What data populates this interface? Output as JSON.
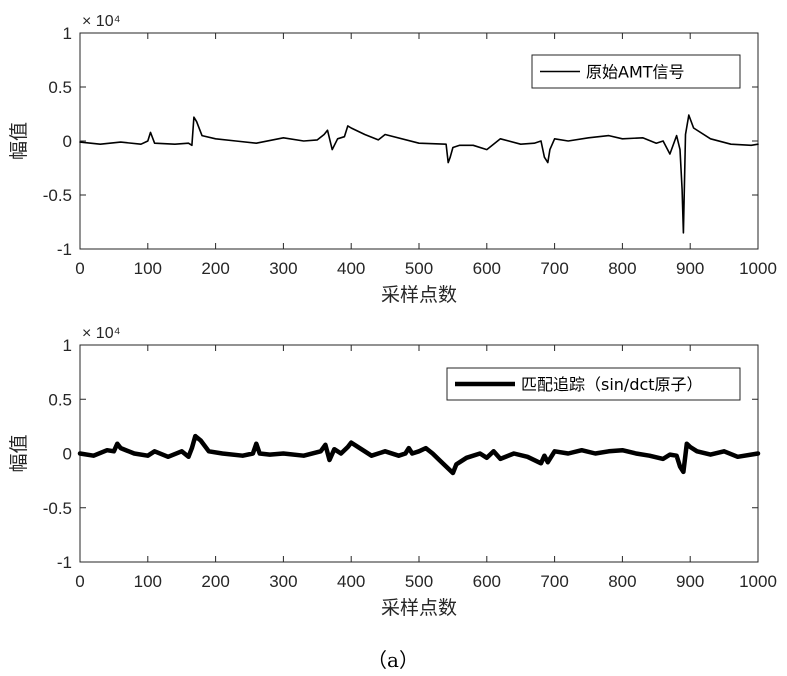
{
  "chart_data": [
    {
      "type": "line",
      "xlabel": "采样点数",
      "ylabel": "幅值",
      "xlim": [
        0,
        1000
      ],
      "ylim": [
        -10000,
        10000
      ],
      "xticks": [
        "0",
        "100",
        "200",
        "300",
        "400",
        "500",
        "600",
        "700",
        "800",
        "900",
        "1000"
      ],
      "yticks": [
        "1",
        "0.5",
        "0",
        "-0.5",
        "-1"
      ],
      "exponent": "× 10⁴",
      "legend_position": "top-right",
      "grid": false,
      "series": [
        {
          "name": "原始AMT信号",
          "color": "#000000",
          "x": [
            0,
            30,
            60,
            90,
            100,
            104,
            110,
            140,
            160,
            165,
            168,
            172,
            180,
            200,
            230,
            260,
            300,
            330,
            350,
            360,
            365,
            372,
            380,
            390,
            395,
            400,
            420,
            440,
            450,
            500,
            540,
            543,
            546,
            550,
            560,
            580,
            600,
            620,
            650,
            670,
            680,
            685,
            690,
            693,
            700,
            720,
            750,
            780,
            800,
            830,
            850,
            860,
            870,
            880,
            885,
            888,
            890,
            893,
            898,
            905,
            930,
            960,
            990,
            1000
          ],
          "y": [
            -100,
            -300,
            -100,
            -300,
            0,
            800,
            -200,
            -300,
            -200,
            -400,
            2200,
            1800,
            500,
            200,
            0,
            -200,
            300,
            0,
            100,
            600,
            1000,
            -800,
            200,
            400,
            1400,
            1200,
            600,
            100,
            600,
            -200,
            -300,
            -2000,
            -1500,
            -600,
            -400,
            -400,
            -800,
            200,
            -300,
            -200,
            0,
            -1500,
            -2000,
            -800,
            200,
            0,
            300,
            500,
            200,
            300,
            -200,
            0,
            -1200,
            500,
            -800,
            -4500,
            -8500,
            600,
            2400,
            1200,
            200,
            -300,
            -400,
            -300
          ]
        }
      ]
    },
    {
      "type": "line",
      "xlabel": "采样点数",
      "ylabel": "幅值",
      "xlim": [
        0,
        1000
      ],
      "ylim": [
        -10000,
        10000
      ],
      "xticks": [
        "0",
        "100",
        "200",
        "300",
        "400",
        "500",
        "600",
        "700",
        "800",
        "900",
        "1000"
      ],
      "yticks": [
        "1",
        "0.5",
        "0",
        "-0.5",
        "-1"
      ],
      "exponent": "× 10⁴",
      "legend_position": "top-right",
      "grid": false,
      "series": [
        {
          "name": "匹配追踪（sin/dct原子）",
          "color": "#000000",
          "x": [
            0,
            20,
            40,
            50,
            55,
            60,
            80,
            100,
            110,
            130,
            150,
            160,
            165,
            170,
            178,
            190,
            210,
            240,
            255,
            260,
            265,
            280,
            300,
            330,
            355,
            362,
            368,
            375,
            385,
            395,
            400,
            415,
            430,
            450,
            470,
            480,
            485,
            490,
            500,
            510,
            520,
            530,
            545,
            550,
            555,
            570,
            590,
            600,
            610,
            620,
            640,
            660,
            680,
            685,
            690,
            700,
            720,
            740,
            760,
            780,
            800,
            820,
            840,
            860,
            870,
            880,
            885,
            890,
            895,
            900,
            910,
            930,
            950,
            970,
            1000
          ],
          "y": [
            0,
            -200,
            300,
            200,
            900,
            500,
            0,
            -200,
            200,
            -300,
            200,
            -300,
            500,
            1600,
            1200,
            200,
            0,
            -200,
            0,
            900,
            0,
            -100,
            0,
            -200,
            200,
            800,
            -600,
            400,
            0,
            600,
            1000,
            400,
            -200,
            200,
            -200,
            0,
            500,
            0,
            200,
            500,
            0,
            -600,
            -1500,
            -1800,
            -1000,
            -400,
            0,
            -400,
            200,
            -500,
            0,
            -300,
            -900,
            -200,
            -800,
            200,
            0,
            300,
            0,
            200,
            300,
            0,
            -200,
            -500,
            -100,
            -200,
            -1200,
            -1700,
            900,
            600,
            200,
            -100,
            200,
            -300,
            0
          ]
        }
      ]
    }
  ],
  "caption": "（a）"
}
